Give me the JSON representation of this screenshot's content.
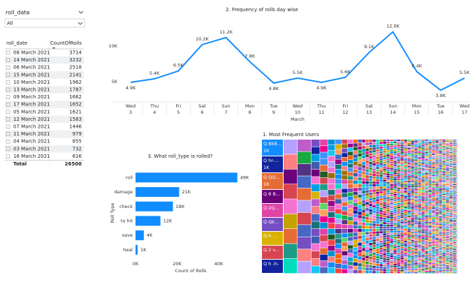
{
  "slicer": {
    "title": "roll_date",
    "selection": "All"
  },
  "table": {
    "columns": [
      "roll_date",
      "CountOfRolls"
    ],
    "rows": [
      [
        "08 March 2021",
        3714
      ],
      [
        "14 March 2021",
        3232
      ],
      [
        "06 March 2021",
        2518
      ],
      [
        "15 March 2021",
        2141
      ],
      [
        "10 March 2021",
        1962
      ],
      [
        "13 March 2021",
        1787
      ],
      [
        "09 March 2021",
        1662
      ],
      [
        "17 March 2021",
        1652
      ],
      [
        "05 March 2021",
        1621
      ],
      [
        "12 March 2021",
        1583
      ],
      [
        "07 March 2021",
        1446
      ],
      [
        "11 March 2021",
        979
      ],
      [
        "04 March 2021",
        855
      ],
      [
        "03 March 2021",
        732
      ],
      [
        "16 March 2021",
        616
      ]
    ],
    "total": [
      "Total",
      26500
    ]
  },
  "chart_data": [
    {
      "type": "line",
      "title": "2. Frequency of rolls day wise",
      "categories": [
        "Wed",
        "Thu",
        "Fri",
        "Sat",
        "Sun",
        "Mon",
        "Tue",
        "Wed",
        "Thu",
        "Fri",
        "Sat",
        "Sun",
        "Mon",
        "Tue",
        "Wed"
      ],
      "category_days": [
        "3",
        "4",
        "5",
        "6",
        "7",
        "8",
        "9",
        "10",
        "11",
        "12",
        "13",
        "14",
        "15",
        "16",
        "17"
      ],
      "category_group": "March",
      "values": [
        4900,
        5400,
        6500,
        10200,
        11200,
        7800,
        4800,
        5500,
        4900,
        5600,
        9100,
        12000,
        6400,
        3800,
        5500
      ],
      "value_labels": [
        "4.9K",
        "5.4K",
        "6.5K",
        "10.2K",
        "11.2K",
        "7.8K",
        "4.8K",
        "5.5K",
        "4.9K",
        "5.6K",
        "9.1K",
        "12.0K",
        "6.4K",
        "3.8K",
        "5.5K"
      ],
      "color": "#118DFF",
      "ylim": [
        2500,
        12500
      ],
      "yticks": [
        {
          "value": 5000,
          "label": "5K"
        },
        {
          "value": 10000,
          "label": "10K"
        }
      ]
    },
    {
      "type": "bar",
      "orientation": "horizontal",
      "title": "3. What roll_type is rolled?",
      "x_label": "Count of Rolls",
      "y_label": "Roll Type",
      "categories": [
        "roll",
        "damage",
        "check",
        "to hit",
        "save",
        "heal"
      ],
      "values": [
        49000,
        21000,
        18000,
        12000,
        4000,
        1000
      ],
      "value_labels": [
        "49K",
        "21K",
        "18K",
        "12K",
        "4K",
        "1K"
      ],
      "color": "#118DFF",
      "xlim": [
        0,
        50000
      ],
      "xticks": [
        {
          "value": 0,
          "label": "0K"
        },
        {
          "value": 20000,
          "label": "20K"
        },
        {
          "value": 40000,
          "label": "40K"
        }
      ]
    },
    {
      "type": "treemap",
      "title": "1. Most Frequent Users",
      "categories": [
        "Q BkB...",
        "Q hr-...",
        "Q QQ...",
        "Q 8 B...",
        "Q 2Q...",
        "Q Qk...",
        "Q h ...",
        "Q 2 v...",
        "Q h -h-"
      ],
      "values": [
        1000,
        1000,
        1000,
        1000,
        1000,
        1000,
        1000,
        1000,
        1000
      ],
      "value_labels": [
        "1K",
        "1K",
        "1K",
        null,
        null,
        null,
        null,
        null,
        null
      ],
      "colors": [
        "#118DFF",
        "#12239E",
        "#E66C37",
        "#6B007B",
        "#E044A7",
        "#744EC2",
        "#D9B300",
        "#D64550",
        "#12239E"
      ]
    }
  ]
}
